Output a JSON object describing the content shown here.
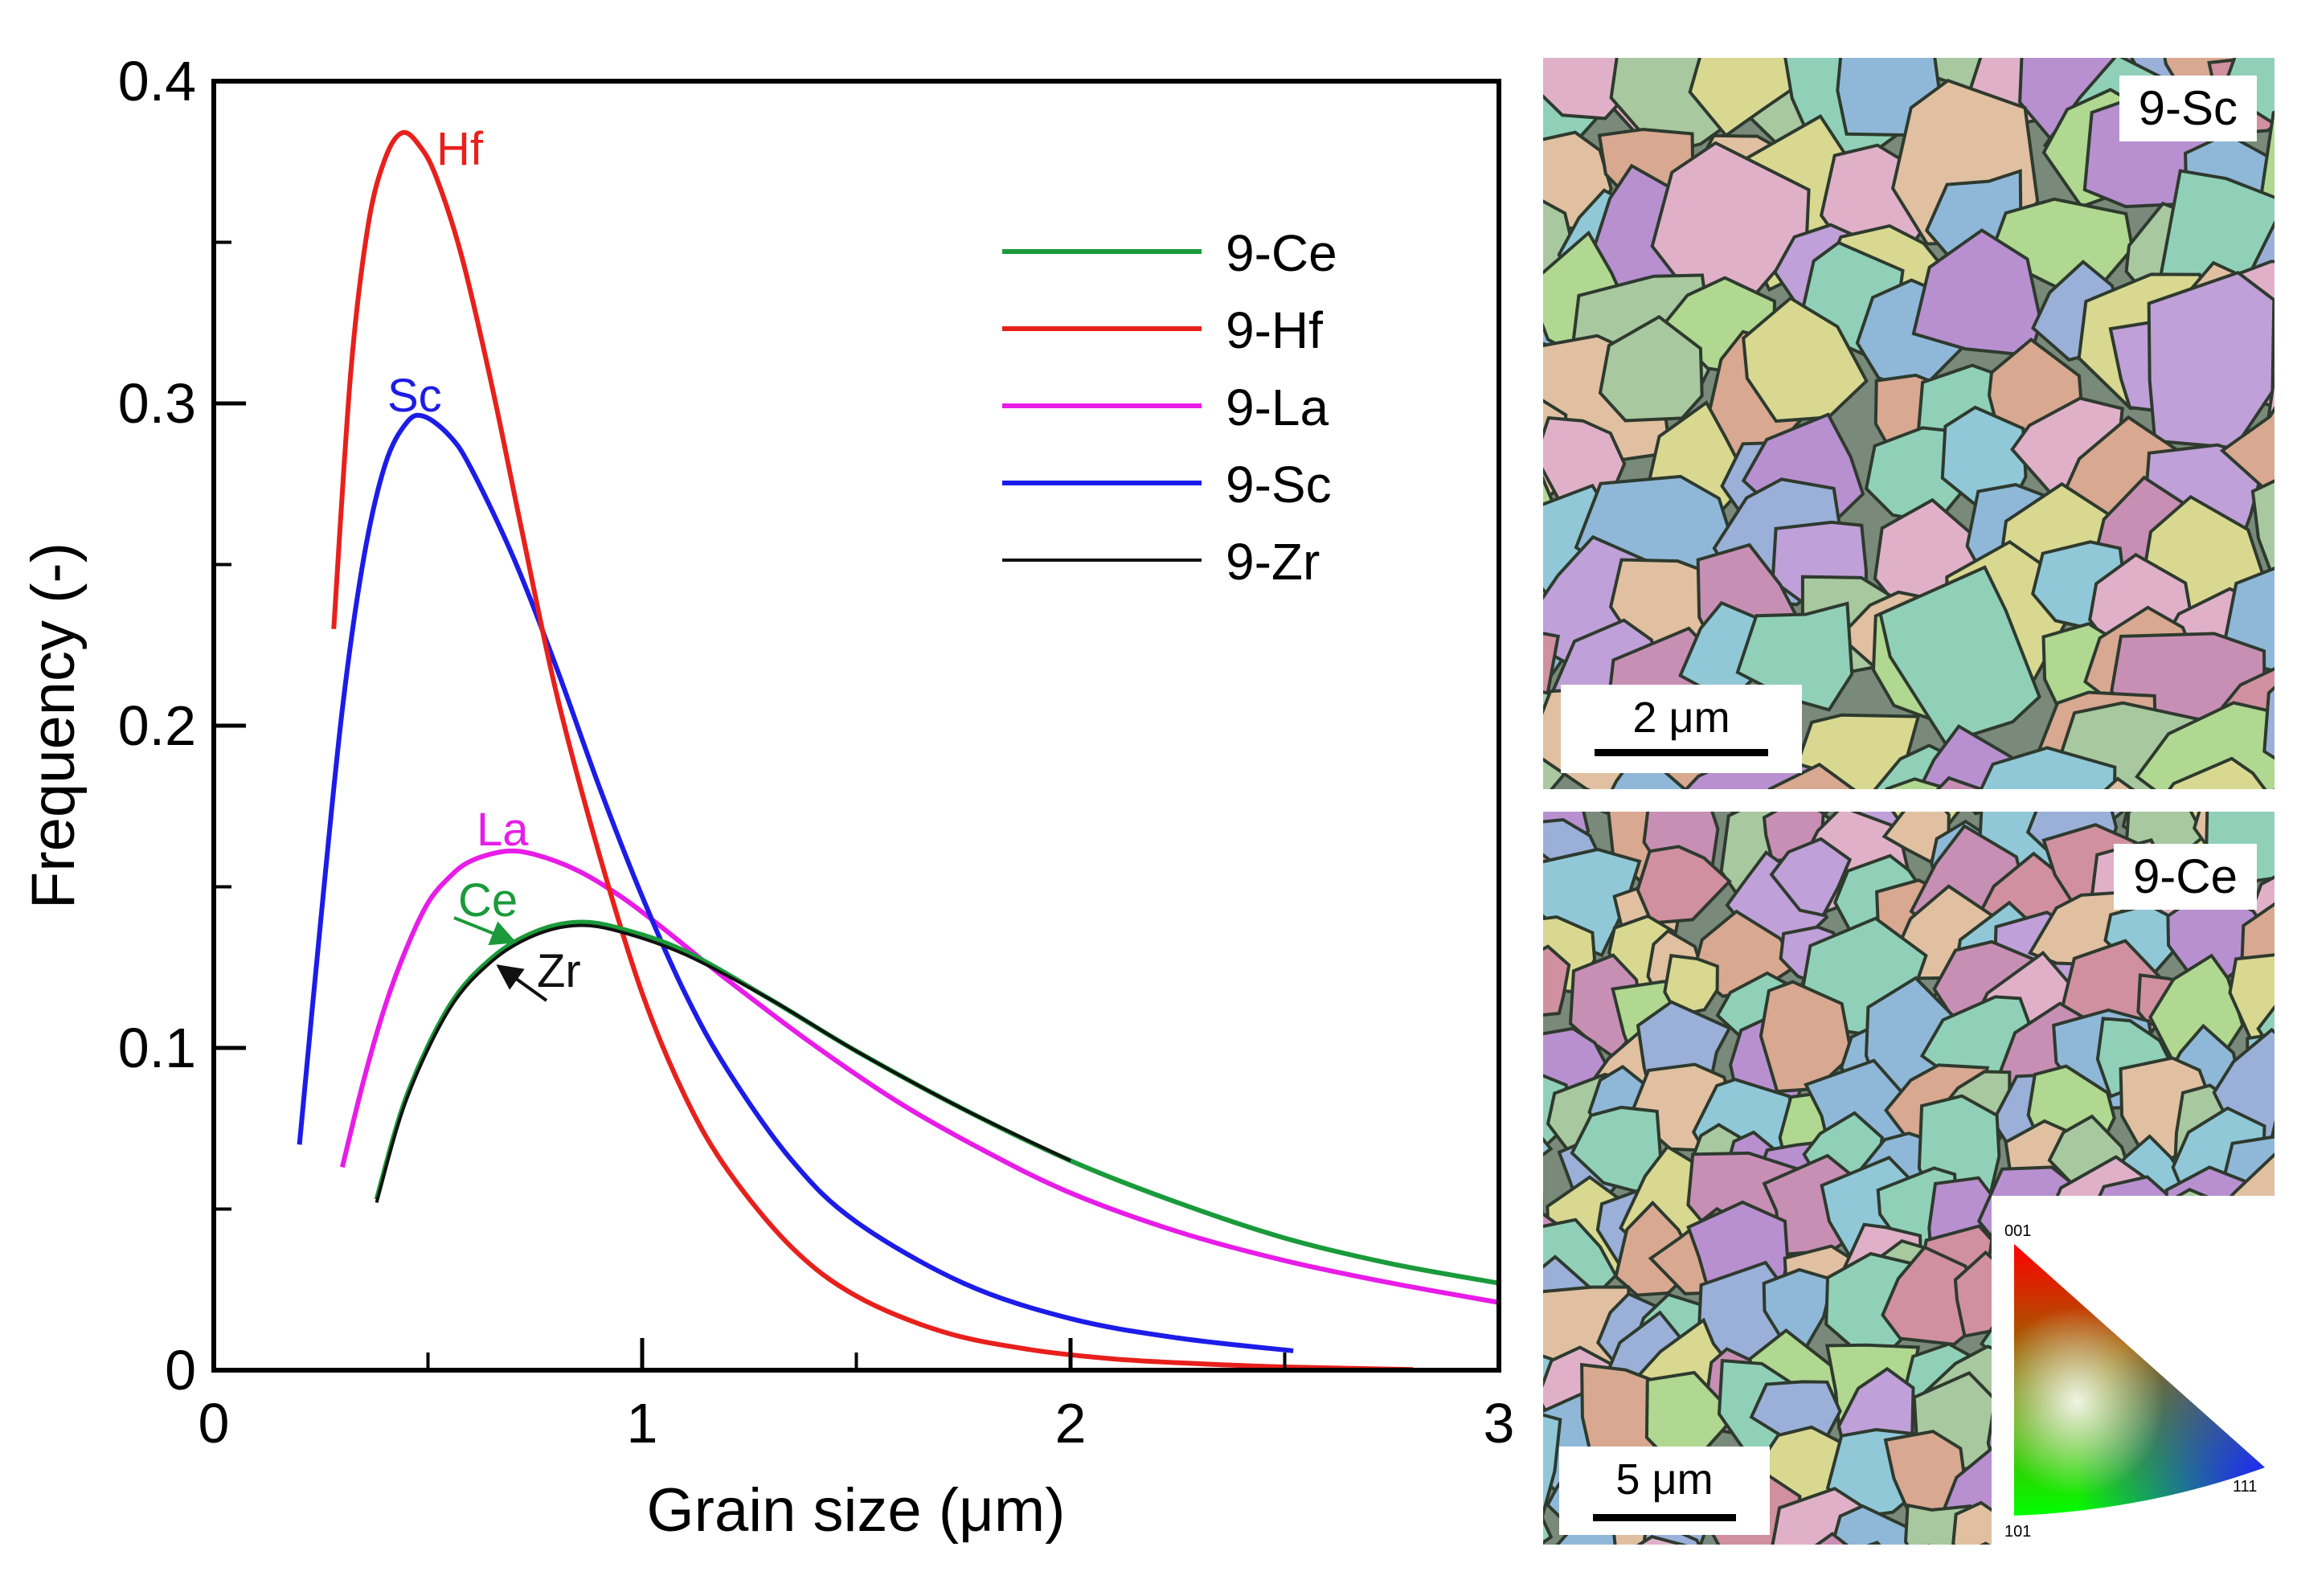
{
  "chart_data": {
    "type": "line",
    "xlabel": "Grain size (μm)",
    "ylabel": "Frequency (-)",
    "xlim": [
      0,
      3
    ],
    "ylim": [
      0,
      0.4
    ],
    "x_ticks": [
      "0",
      "1",
      "2",
      "3"
    ],
    "y_ticks": [
      "0",
      "0.1",
      "0.2",
      "0.3",
      "0.4"
    ],
    "legend_position": "top-right",
    "series": [
      {
        "name": "9-Ce",
        "label": "Ce",
        "color": "#1a9a3a",
        "x": [
          0.38,
          0.45,
          0.55,
          0.65,
          0.75,
          0.85,
          0.95,
          1.1,
          1.3,
          1.5,
          1.75,
          2.0,
          2.25,
          2.5,
          2.75,
          3.0
        ],
        "y": [
          0.053,
          0.085,
          0.113,
          0.128,
          0.136,
          0.139,
          0.137,
          0.13,
          0.115,
          0.099,
          0.081,
          0.065,
          0.052,
          0.041,
          0.033,
          0.027
        ]
      },
      {
        "name": "9-Hf",
        "label": "Hf",
        "color": "#e8201c",
        "x": [
          0.28,
          0.32,
          0.36,
          0.4,
          0.44,
          0.48,
          0.52,
          0.58,
          0.65,
          0.72,
          0.8,
          0.9,
          1.0,
          1.1,
          1.2,
          1.35,
          1.5,
          1.7,
          1.9,
          2.1,
          2.3,
          2.5,
          2.8
        ],
        "y": [
          0.23,
          0.31,
          0.355,
          0.376,
          0.384,
          0.38,
          0.37,
          0.345,
          0.305,
          0.26,
          0.21,
          0.16,
          0.117,
          0.085,
          0.062,
          0.038,
          0.023,
          0.012,
          0.0065,
          0.0035,
          0.002,
          0.001,
          0.0002
        ]
      },
      {
        "name": "9-La",
        "label": "La",
        "color": "#e81ce8",
        "x": [
          0.3,
          0.35,
          0.4,
          0.45,
          0.5,
          0.55,
          0.6,
          0.68,
          0.75,
          0.85,
          0.95,
          1.05,
          1.2,
          1.4,
          1.6,
          1.8,
          2.0,
          2.25,
          2.5,
          2.75,
          3.0
        ],
        "y": [
          0.063,
          0.09,
          0.113,
          0.131,
          0.145,
          0.153,
          0.158,
          0.161,
          0.16,
          0.155,
          0.147,
          0.137,
          0.121,
          0.101,
          0.083,
          0.068,
          0.055,
          0.043,
          0.034,
          0.027,
          0.021
        ]
      },
      {
        "name": "9-Sc",
        "label": "Sc",
        "color": "#1c1ce8",
        "x": [
          0.2,
          0.25,
          0.3,
          0.35,
          0.4,
          0.45,
          0.49,
          0.55,
          0.6,
          0.7,
          0.8,
          0.9,
          1.0,
          1.1,
          1.2,
          1.35,
          1.5,
          1.75,
          2.0,
          2.25,
          2.52
        ],
        "y": [
          0.07,
          0.14,
          0.205,
          0.252,
          0.281,
          0.294,
          0.296,
          0.29,
          0.28,
          0.252,
          0.218,
          0.181,
          0.147,
          0.117,
          0.093,
          0.065,
          0.046,
          0.027,
          0.016,
          0.01,
          0.006
        ]
      },
      {
        "name": "9-Zr",
        "label": "Zr",
        "color": "#111111",
        "x": [
          0.38,
          0.45,
          0.55,
          0.65,
          0.75,
          0.85,
          0.95,
          1.1,
          1.3,
          1.5,
          1.75,
          2.0
        ],
        "y": [
          0.052,
          0.084,
          0.112,
          0.127,
          0.135,
          0.138,
          0.136,
          0.129,
          0.115,
          0.099,
          0.081,
          0.065
        ]
      }
    ]
  },
  "micrographs": {
    "top": {
      "tag": "9-Sc",
      "scale": "2 μm"
    },
    "bottom": {
      "tag": "9-Ce",
      "scale": "5 μm",
      "triangle": {
        "top": "001",
        "bottom_left": "101",
        "bottom_right": "111"
      }
    }
  }
}
